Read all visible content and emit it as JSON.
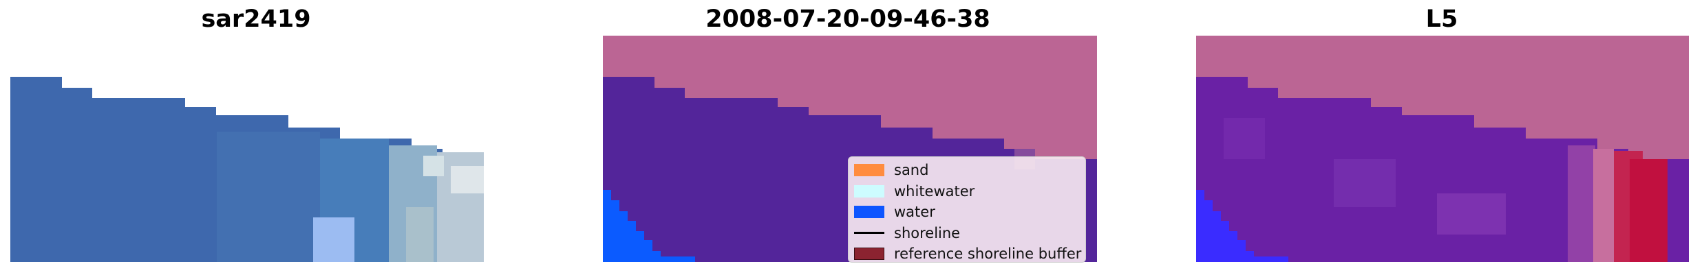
{
  "panels": [
    {
      "title": "sar2419"
    },
    {
      "title": "2008-07-20-09-46-38"
    },
    {
      "title": "L5"
    }
  ],
  "legend": {
    "items": [
      {
        "label": "sand",
        "color": "#ff8c3f",
        "kind": "patch"
      },
      {
        "label": "whitewater",
        "color": "#cdfcff",
        "kind": "patch"
      },
      {
        "label": "water",
        "color": "#0d55ff",
        "kind": "patch"
      },
      {
        "label": "shoreline",
        "color": "#000000",
        "kind": "line"
      },
      {
        "label": "reference shoreline buffer",
        "color": "#8b2330",
        "kind": "patch"
      }
    ]
  },
  "colors": {
    "sky_band": "#bb6594",
    "water_rgb": "#3e68ad",
    "classified_sea": "#53259a",
    "classified_water": "#0b5bff",
    "l5_sea": "#6a21a5",
    "l5_water": "#3a2cff",
    "l5_red": "#c1103f"
  }
}
